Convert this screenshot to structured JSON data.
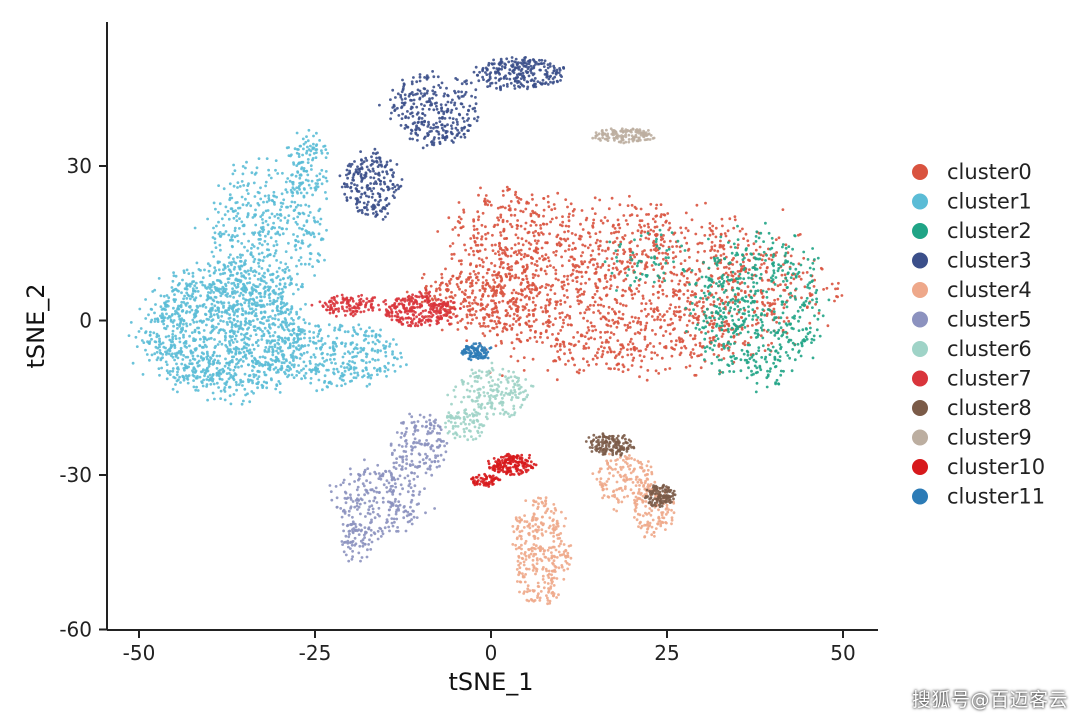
{
  "chart_data": {
    "type": "scatter",
    "xlabel": "tSNE_1",
    "ylabel": "tSNE_2",
    "xlim": [
      -55,
      55
    ],
    "ylim": [
      -60,
      58
    ],
    "xticks": [
      -50,
      -25,
      0,
      25,
      50
    ],
    "yticks": [
      -60,
      -30,
      0,
      30
    ],
    "xtick_labels": [
      "-50",
      "-25",
      "0",
      "25",
      "50"
    ],
    "ytick_labels": [
      "-60",
      "-30",
      "0",
      "30"
    ],
    "grid": false,
    "legend_position": "right",
    "series": [
      {
        "name": "cluster0",
        "color": "#d9533f",
        "regions": [
          {
            "cx": 20,
            "cy": 6,
            "rx": 26,
            "ry": 15,
            "n": 1600
          },
          {
            "cx": 3,
            "cy": 17,
            "rx": 9,
            "ry": 9,
            "n": 220
          },
          {
            "cx": -1,
            "cy": 4,
            "rx": 10,
            "ry": 5,
            "n": 220
          }
        ]
      },
      {
        "name": "cluster1",
        "color": "#5bbcd6",
        "regions": [
          {
            "cx": -38,
            "cy": -2,
            "rx": 11,
            "ry": 12,
            "n": 1300
          },
          {
            "cx": -32,
            "cy": 17,
            "rx": 8,
            "ry": 13,
            "n": 450
          },
          {
            "cx": -22,
            "cy": -7,
            "rx": 9,
            "ry": 6,
            "n": 350
          },
          {
            "cx": -26,
            "cy": 30,
            "rx": 3,
            "ry": 6,
            "n": 120
          }
        ]
      },
      {
        "name": "cluster2",
        "color": "#20a486",
        "regions": [
          {
            "cx": 38,
            "cy": 2,
            "rx": 9,
            "ry": 14,
            "n": 550
          },
          {
            "cx": 22,
            "cy": 12,
            "rx": 6,
            "ry": 6,
            "n": 60
          }
        ]
      },
      {
        "name": "cluster3",
        "color": "#3b4f8a",
        "regions": [
          {
            "cx": -8,
            "cy": 41,
            "rx": 6,
            "ry": 7,
            "n": 300
          },
          {
            "cx": 4,
            "cy": 48,
            "rx": 6,
            "ry": 3,
            "n": 250
          },
          {
            "cx": -17,
            "cy": 26,
            "rx": 4,
            "ry": 6,
            "n": 220
          }
        ]
      },
      {
        "name": "cluster4",
        "color": "#eea88a",
        "regions": [
          {
            "cx": 7,
            "cy": -45,
            "rx": 4,
            "ry": 10,
            "n": 320
          },
          {
            "cx": 19,
            "cy": -31,
            "rx": 4,
            "ry": 5,
            "n": 160
          },
          {
            "cx": 23,
            "cy": -37,
            "rx": 3,
            "ry": 5,
            "n": 110
          }
        ]
      },
      {
        "name": "cluster5",
        "color": "#8c92bf",
        "regions": [
          {
            "cx": -16,
            "cy": -35,
            "rx": 6,
            "ry": 7,
            "n": 260
          },
          {
            "cx": -10,
            "cy": -24,
            "rx": 4,
            "ry": 6,
            "n": 160
          },
          {
            "cx": -19,
            "cy": -43,
            "rx": 2,
            "ry": 4,
            "n": 60
          }
        ]
      },
      {
        "name": "cluster6",
        "color": "#9fd3c7",
        "regions": [
          {
            "cx": 0,
            "cy": -14,
            "rx": 5,
            "ry": 5,
            "n": 180
          },
          {
            "cx": -4,
            "cy": -20,
            "rx": 3,
            "ry": 3,
            "n": 80
          }
        ]
      },
      {
        "name": "cluster7",
        "color": "#d9343b",
        "regions": [
          {
            "cx": -10,
            "cy": 2,
            "rx": 5,
            "ry": 3,
            "n": 260
          },
          {
            "cx": -20,
            "cy": 3,
            "rx": 4,
            "ry": 2,
            "n": 120
          }
        ]
      },
      {
        "name": "cluster8",
        "color": "#7b5b48",
        "regions": [
          {
            "cx": 17,
            "cy": -24,
            "rx": 3,
            "ry": 2,
            "n": 140
          },
          {
            "cx": 24,
            "cy": -34,
            "rx": 2,
            "ry": 2,
            "n": 120
          }
        ]
      },
      {
        "name": "cluster9",
        "color": "#bcaea0",
        "regions": [
          {
            "cx": 19,
            "cy": 36,
            "rx": 4,
            "ry": 1.4,
            "n": 140
          }
        ]
      },
      {
        "name": "cluster10",
        "color": "#d7191c",
        "regions": [
          {
            "cx": 3,
            "cy": -28,
            "rx": 3,
            "ry": 2,
            "n": 160
          },
          {
            "cx": -1,
            "cy": -31,
            "rx": 2,
            "ry": 1.2,
            "n": 60
          }
        ]
      },
      {
        "name": "cluster11",
        "color": "#2c7bb6",
        "regions": [
          {
            "cx": -2,
            "cy": -6,
            "rx": 2,
            "ry": 1.6,
            "n": 90
          }
        ]
      }
    ]
  },
  "watermark": "搜狐号@百迈客云"
}
